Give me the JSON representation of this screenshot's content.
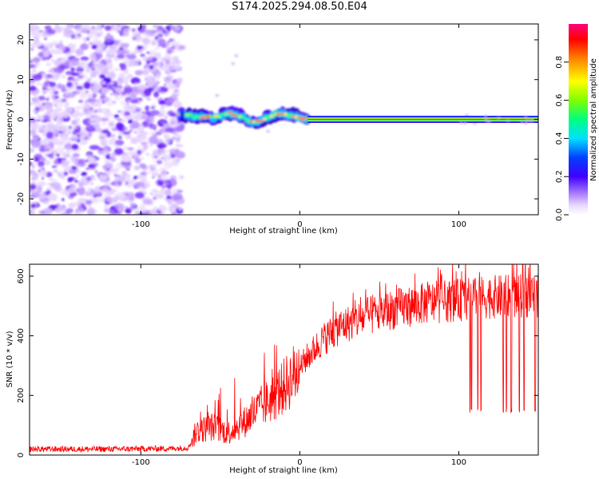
{
  "title": "S174.2025.294.08.50.E04",
  "chart_data": [
    {
      "type": "heatmap",
      "name": "spectrogram",
      "xlabel": "Height of straight line (km)",
      "ylabel": "Frequency (Hz)",
      "xlim": [
        -170,
        150
      ],
      "ylim": [
        -24,
        24
      ],
      "x_ticks": [
        -100,
        0,
        100
      ],
      "y_ticks": [
        -20,
        -10,
        0,
        10,
        20
      ],
      "noise_region_x": [
        -170,
        -75
      ],
      "signal_line": {
        "x_start": 5,
        "x_end": 150,
        "frequency": 0
      },
      "signal_track": [
        {
          "x": -75,
          "y": 1.5
        },
        {
          "x": -70,
          "y": 1.0
        },
        {
          "x": -65,
          "y": 0.5
        },
        {
          "x": -60,
          "y": 0.8
        },
        {
          "x": -55,
          "y": 0.3
        },
        {
          "x": -50,
          "y": 0.9
        },
        {
          "x": -45,
          "y": 1.6
        },
        {
          "x": -40,
          "y": 1.2
        },
        {
          "x": -35,
          "y": 0.2
        },
        {
          "x": -30,
          "y": -0.8
        },
        {
          "x": -25,
          "y": -0.3
        },
        {
          "x": -20,
          "y": 0.6
        },
        {
          "x": -15,
          "y": 1.3
        },
        {
          "x": -10,
          "y": 1.5
        },
        {
          "x": -5,
          "y": 1.0
        },
        {
          "x": 0,
          "y": 0.4
        },
        {
          "x": 5,
          "y": 0.1
        }
      ],
      "colorbar": {
        "label": "Normalized spectral amplitude",
        "ticks": [
          "0.0",
          "0.2",
          "0.4",
          "0.6",
          "0.8"
        ],
        "range": [
          0,
          1
        ]
      }
    },
    {
      "type": "line",
      "name": "snr",
      "xlabel": "Height of straight line (km)",
      "ylabel": "SNR (10 * v/v)",
      "xlim": [
        -170,
        150
      ],
      "ylim": [
        0,
        640
      ],
      "x_ticks": [
        -100,
        0,
        100
      ],
      "y_ticks": [
        0,
        200,
        400,
        600
      ],
      "series_color": "#ff0000",
      "trend": [
        {
          "x": -170,
          "y": 20
        },
        {
          "x": -120,
          "y": 20
        },
        {
          "x": -80,
          "y": 22
        },
        {
          "x": -70,
          "y": 25
        },
        {
          "x": -65,
          "y": 80
        },
        {
          "x": -55,
          "y": 95
        },
        {
          "x": -45,
          "y": 75
        },
        {
          "x": -35,
          "y": 110
        },
        {
          "x": -25,
          "y": 160
        },
        {
          "x": -15,
          "y": 200
        },
        {
          "x": -5,
          "y": 260
        },
        {
          "x": 5,
          "y": 330
        },
        {
          "x": 15,
          "y": 390
        },
        {
          "x": 25,
          "y": 430
        },
        {
          "x": 40,
          "y": 460
        },
        {
          "x": 60,
          "y": 490
        },
        {
          "x": 80,
          "y": 510
        },
        {
          "x": 100,
          "y": 520
        },
        {
          "x": 120,
          "y": 530
        },
        {
          "x": 150,
          "y": 535
        }
      ],
      "dropouts_x": [
        107,
        108,
        112,
        114,
        128,
        130,
        133,
        138,
        141,
        148
      ]
    }
  ]
}
